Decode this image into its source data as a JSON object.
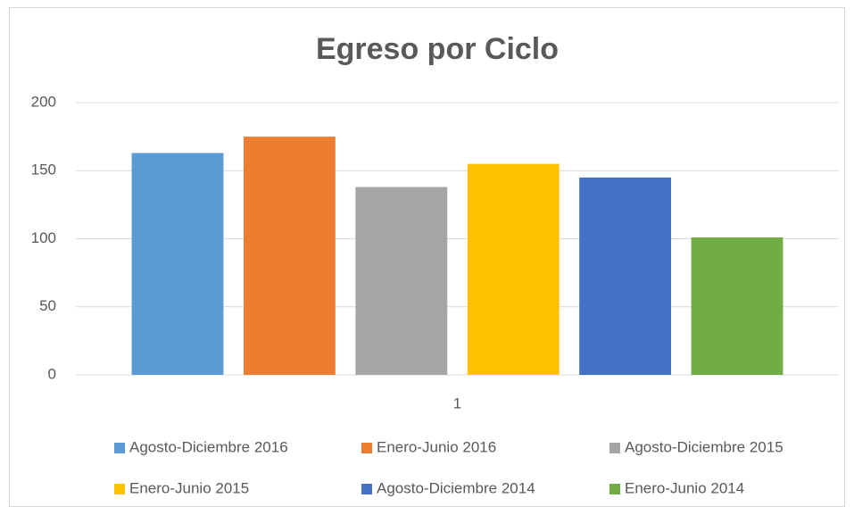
{
  "chart_data": {
    "type": "bar",
    "title": "Egreso por Ciclo",
    "categories": [
      "1"
    ],
    "series": [
      {
        "name": "Agosto-Diciembre 2016",
        "color": "#5b9bd5",
        "values": [
          163
        ]
      },
      {
        "name": "Enero-Junio 2016",
        "color": "#ed7d31",
        "values": [
          175
        ]
      },
      {
        "name": "Agosto-Diciembre 2015",
        "color": "#a5a5a5",
        "values": [
          138
        ]
      },
      {
        "name": "Enero-Junio 2015",
        "color": "#ffc000",
        "values": [
          155
        ]
      },
      {
        "name": "Agosto-Diciembre 2014",
        "color": "#4472c4",
        "values": [
          145
        ]
      },
      {
        "name": "Enero-Junio 2014",
        "color": "#70ad47",
        "values": [
          101
        ]
      }
    ],
    "ylim": [
      0,
      200
    ],
    "yticks": [
      0,
      50,
      100,
      150,
      200
    ],
    "grid": true,
    "legend": "bottom"
  }
}
